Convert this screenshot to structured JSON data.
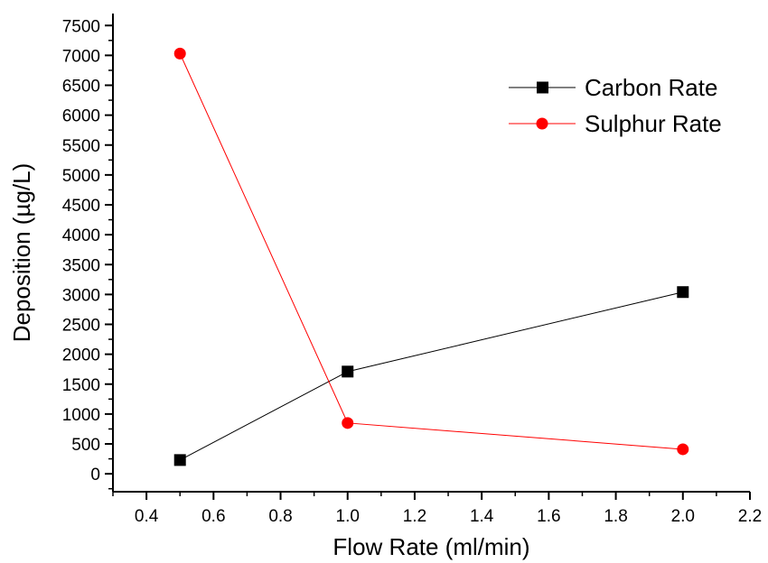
{
  "chart_data": {
    "type": "line",
    "title": "",
    "xlabel": "Flow Rate (ml/min)",
    "ylabel": "Deposition (µg/L)",
    "xlim": [
      0.3,
      2.2
    ],
    "ylim": [
      -300,
      7700
    ],
    "x_ticks": [
      0.4,
      0.6,
      0.8,
      1.0,
      1.2,
      1.4,
      1.6,
      1.8,
      2.0,
      2.2
    ],
    "x_tick_labels": [
      "0.4",
      "0.6",
      "0.8",
      "1.0",
      "1.2",
      "1.4",
      "1.6",
      "1.8",
      "2.0",
      "2.2"
    ],
    "y_ticks": [
      0,
      500,
      1000,
      1500,
      2000,
      2500,
      3000,
      3500,
      4000,
      4500,
      5000,
      5500,
      6000,
      6500,
      7000,
      7500
    ],
    "y_tick_labels": [
      "0",
      "500",
      "1000",
      "1500",
      "2000",
      "2500",
      "3000",
      "3500",
      "4000",
      "4500",
      "5000",
      "5500",
      "6000",
      "6500",
      "7000",
      "7500"
    ],
    "grid": false,
    "legend_position": "top-right",
    "series": [
      {
        "name": "Carbon Rate",
        "color": "#000000",
        "marker": "square",
        "x": [
          0.5,
          1.0,
          2.0
        ],
        "y": [
          230,
          1710,
          3040
        ]
      },
      {
        "name": "Sulphur Rate",
        "color": "#ff0000",
        "marker": "circle",
        "x": [
          0.5,
          1.0,
          2.0
        ],
        "y": [
          7030,
          850,
          410
        ]
      }
    ]
  }
}
